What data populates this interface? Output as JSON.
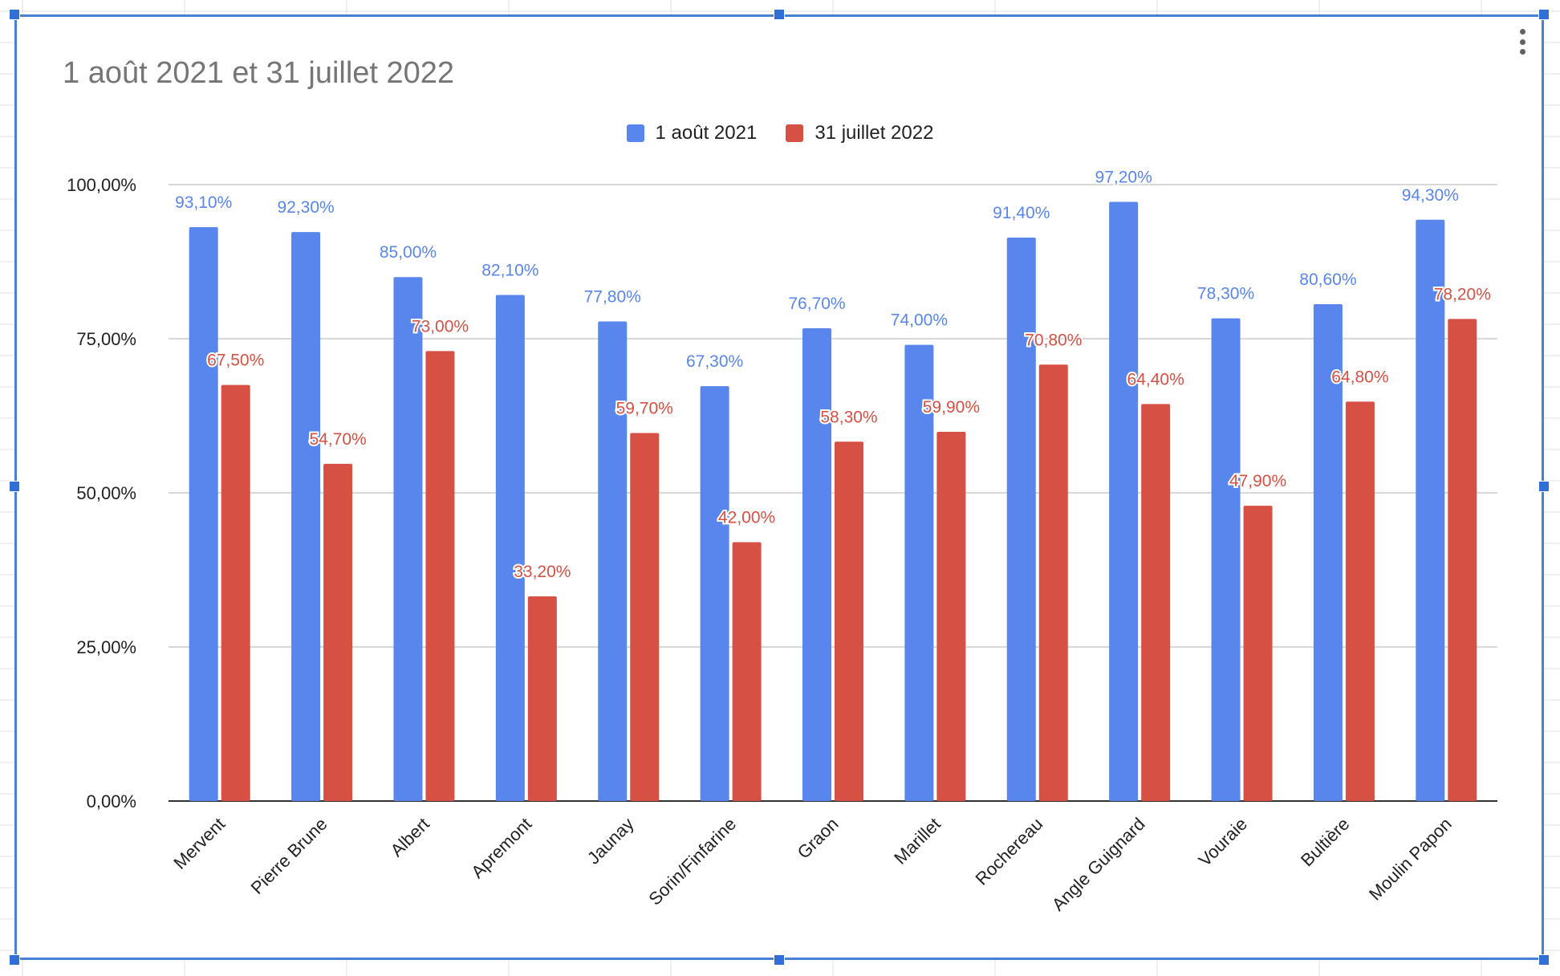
{
  "colors": {
    "series_1": "#5886ec",
    "series_2": "#d65043",
    "gridline": "#cccccc",
    "axis": "#333333",
    "title": "#757575",
    "selection": "#2f6fd6"
  },
  "chart_menu": {
    "icon": "more-vert-icon"
  },
  "chart_data": {
    "type": "bar",
    "title": "1 août 2021 et 31 juillet 2022",
    "xlabel": "",
    "ylabel": "",
    "ylim": [
      0,
      100
    ],
    "yticks": [
      "0,00%",
      "25,00%",
      "50,00%",
      "75,00%",
      "100,00%"
    ],
    "ytick_values": [
      0,
      25,
      50,
      75,
      100
    ],
    "grid": true,
    "legend": "top-center",
    "categories": [
      "Mervent",
      "Pierre Brune",
      "Albert",
      "Apremont",
      "Jaunay",
      "Sorin/Finfarine",
      "Graon",
      "Marillet",
      "Rochereau",
      "Angle Guignard",
      "Vouraie",
      "Bultière",
      "Moulin Papon"
    ],
    "series": [
      {
        "name": "1 août 2021",
        "values": [
          93.1,
          92.3,
          85.0,
          82.1,
          77.8,
          67.3,
          76.7,
          74.0,
          91.4,
          97.2,
          78.3,
          80.6,
          94.3
        ],
        "labels": [
          "93,10%",
          "92,30%",
          "85,00%",
          "82,10%",
          "77,80%",
          "67,30%",
          "76,70%",
          "74,00%",
          "91,40%",
          "97,20%",
          "78,30%",
          "80,60%",
          "94,30%"
        ]
      },
      {
        "name": "31 juillet 2022",
        "values": [
          67.5,
          54.7,
          73.0,
          33.2,
          59.7,
          42.0,
          58.3,
          59.9,
          70.8,
          64.4,
          47.9,
          64.8,
          78.2
        ],
        "labels": [
          "67,50%",
          "54,70%",
          "73,00%",
          "33,20%",
          "59,70%",
          "42,00%",
          "58,30%",
          "59,90%",
          "70,80%",
          "64,40%",
          "47,90%",
          "64,80%",
          "78,20%"
        ]
      }
    ]
  }
}
